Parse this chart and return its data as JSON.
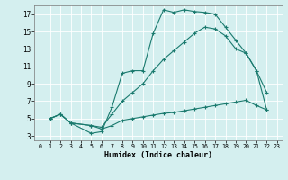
{
  "xlabel": "Humidex (Indice chaleur)",
  "bg_color": "#d4efef",
  "grid_color": "#ffffff",
  "line_color": "#1a7a6e",
  "xlim": [
    -0.5,
    23.5
  ],
  "ylim": [
    2.5,
    18.0
  ],
  "xticks": [
    0,
    1,
    2,
    3,
    4,
    5,
    6,
    7,
    8,
    9,
    10,
    11,
    12,
    13,
    14,
    15,
    16,
    17,
    18,
    19,
    20,
    21,
    22,
    23
  ],
  "yticks": [
    3,
    5,
    7,
    9,
    11,
    13,
    15,
    17
  ],
  "curve1_x": [
    1,
    2,
    3,
    5,
    6,
    7,
    8,
    9,
    10,
    11,
    12,
    13,
    14,
    15,
    16,
    17,
    18,
    19,
    20,
    21,
    22
  ],
  "curve1_y": [
    5,
    5.5,
    4.5,
    3.3,
    3.5,
    6.3,
    10.2,
    10.5,
    10.5,
    14.8,
    17.5,
    17.2,
    17.5,
    17.3,
    17.2,
    17.0,
    15.5,
    14.0,
    12.5,
    10.5,
    8.0
  ],
  "curve2_x": [
    1,
    2,
    3,
    5,
    6,
    7,
    8,
    9,
    10,
    11,
    12,
    13,
    14,
    15,
    16,
    17,
    18,
    19,
    20,
    21,
    22
  ],
  "curve2_y": [
    5,
    5.5,
    4.5,
    4.2,
    4.0,
    5.5,
    7.0,
    8.0,
    9.0,
    10.5,
    11.8,
    12.8,
    13.8,
    14.8,
    15.5,
    15.3,
    14.5,
    13.0,
    12.5,
    10.5,
    6.0
  ],
  "curve3_x": [
    1,
    2,
    3,
    5,
    6,
    7,
    8,
    9,
    10,
    11,
    12,
    13,
    14,
    15,
    16,
    17,
    18,
    19,
    20,
    21,
    22
  ],
  "curve3_y": [
    5,
    5.5,
    4.5,
    4.2,
    3.8,
    4.2,
    4.8,
    5.0,
    5.2,
    5.4,
    5.6,
    5.7,
    5.9,
    6.1,
    6.3,
    6.5,
    6.7,
    6.9,
    7.1,
    6.5,
    6.0
  ]
}
